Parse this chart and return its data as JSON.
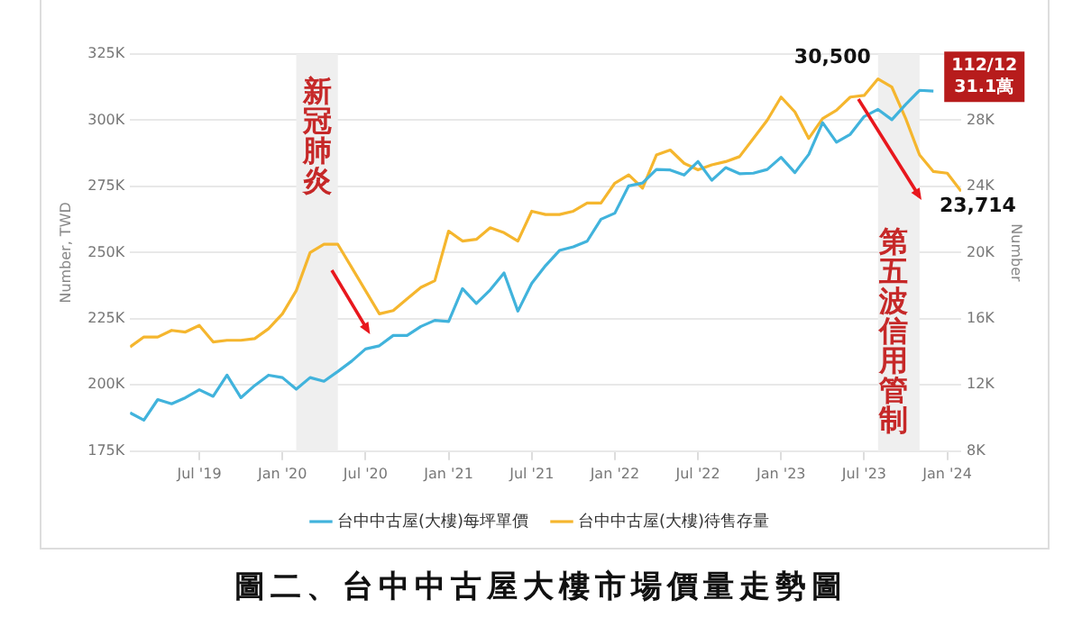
{
  "chart_data": {
    "type": "line",
    "title": "圖二、台中中古屋大樓市場價量走勢圖",
    "ylabel": "Number, TWD",
    "y2label": "Number",
    "x": [
      "2019-02",
      "2019-03",
      "2019-04",
      "2019-05",
      "2019-06",
      "2019-07",
      "2019-08",
      "2019-09",
      "2019-10",
      "2019-11",
      "2019-12",
      "2020-01",
      "2020-02",
      "2020-03",
      "2020-04",
      "2020-05",
      "2020-06",
      "2020-07",
      "2020-08",
      "2020-09",
      "2020-10",
      "2020-11",
      "2020-12",
      "2021-01",
      "2021-02",
      "2021-03",
      "2021-04",
      "2021-05",
      "2021-06",
      "2021-07",
      "2021-08",
      "2021-09",
      "2021-10",
      "2021-11",
      "2021-12",
      "2022-01",
      "2022-02",
      "2022-03",
      "2022-04",
      "2022-05",
      "2022-06",
      "2022-07",
      "2022-08",
      "2022-09",
      "2022-10",
      "2022-11",
      "2022-12",
      "2023-01",
      "2023-02",
      "2023-03",
      "2023-04",
      "2023-05",
      "2023-06",
      "2023-07",
      "2023-08",
      "2023-09",
      "2023-10",
      "2023-11",
      "2023-12",
      "2024-01",
      "2024-02"
    ],
    "series": [
      {
        "name": "台中中古屋(大樓)每坪單價",
        "color": "#41b3dc",
        "values": [
          189500,
          186700,
          194500,
          192900,
          195200,
          198200,
          195700,
          203700,
          195200,
          199800,
          203700,
          202800,
          198400,
          202800,
          201400,
          205100,
          209000,
          213600,
          214800,
          218700,
          218700,
          222100,
          224400,
          224000,
          236400,
          230800,
          235900,
          242300,
          227900,
          238400,
          245100,
          250800,
          252200,
          254300,
          262600,
          264900,
          275200,
          276300,
          281400,
          281200,
          279300,
          284400,
          277300,
          282100,
          279800,
          280000,
          281400,
          286000,
          280200,
          287100,
          299100,
          291700,
          294700,
          301400,
          304100,
          300200,
          306000,
          311300,
          311000,
          null,
          null
        ],
        "value_labels": [
          null,
          null,
          null,
          null,
          null,
          null,
          null,
          null,
          null,
          null,
          null,
          null,
          null,
          null,
          null,
          null,
          null,
          null,
          null,
          null,
          null,
          null,
          null,
          null,
          null,
          null,
          null,
          null,
          null,
          null,
          null,
          null,
          null,
          null,
          null,
          null,
          null,
          null,
          null,
          null,
          null,
          null,
          null,
          null,
          null,
          null,
          null,
          null,
          null,
          null,
          null,
          null,
          null,
          null,
          null,
          null,
          null,
          null,
          "112/12\n31.1萬",
          null,
          null
        ]
      },
      {
        "name": "台中中古屋(大樓)待售存量",
        "color": "#f5b62e",
        "axis": "y2",
        "values": [
          14300,
          14900,
          14900,
          15300,
          15200,
          15600,
          14600,
          14700,
          14700,
          14800,
          15400,
          16300,
          17700,
          20000,
          20500,
          20500,
          19100,
          17700,
          16300,
          16500,
          17200,
          17900,
          18300,
          21300,
          20700,
          20800,
          21500,
          21200,
          20700,
          22500,
          22300,
          22300,
          22500,
          23000,
          23000,
          24200,
          24700,
          23900,
          25900,
          26200,
          25400,
          25000,
          25300,
          25500,
          25800,
          26900,
          28000,
          29400,
          28500,
          26900,
          28100,
          28600,
          29400,
          29500,
          30500,
          30000,
          28100,
          25900,
          24900,
          24800,
          23714
        ],
        "value_labels": [
          null,
          null,
          null,
          null,
          null,
          null,
          null,
          null,
          null,
          null,
          null,
          null,
          null,
          null,
          null,
          null,
          null,
          null,
          null,
          null,
          null,
          null,
          null,
          null,
          null,
          null,
          null,
          null,
          null,
          null,
          null,
          null,
          null,
          null,
          null,
          null,
          null,
          null,
          null,
          null,
          null,
          null,
          null,
          null,
          null,
          null,
          null,
          null,
          null,
          null,
          null,
          null,
          null,
          null,
          "30,500",
          null,
          null,
          null,
          null,
          null,
          "23,714"
        ]
      }
    ],
    "xlim": [
      "2019-02",
      "2024-02"
    ],
    "xticks": [
      {
        "value": "2019-07",
        "label": "Jul '19"
      },
      {
        "value": "2020-01",
        "label": "Jan '20"
      },
      {
        "value": "2020-07",
        "label": "Jul '20"
      },
      {
        "value": "2021-01",
        "label": "Jan '21"
      },
      {
        "value": "2021-07",
        "label": "Jul '21"
      },
      {
        "value": "2022-01",
        "label": "Jan '22"
      },
      {
        "value": "2022-07",
        "label": "Jul '22"
      },
      {
        "value": "2023-01",
        "label": "Jan '23"
      },
      {
        "value": "2023-07",
        "label": "Jul '23"
      },
      {
        "value": "2024-01",
        "label": "Jan '24"
      }
    ],
    "ylim": [
      175000,
      325000
    ],
    "yticks": [
      {
        "value": 175000,
        "label": "175K"
      },
      {
        "value": 200000,
        "label": "200K"
      },
      {
        "value": 225000,
        "label": "225K"
      },
      {
        "value": 250000,
        "label": "250K"
      },
      {
        "value": 275000,
        "label": "275K"
      },
      {
        "value": 300000,
        "label": "300K"
      },
      {
        "value": 325000,
        "label": "325K"
      }
    ],
    "y2lim": [
      8000,
      32000
    ],
    "y2ticks": [
      {
        "value": 8000,
        "label": "8K"
      },
      {
        "value": 12000,
        "label": "12K"
      },
      {
        "value": 16000,
        "label": "16K"
      },
      {
        "value": 20000,
        "label": "20K"
      },
      {
        "value": 24000,
        "label": "24K"
      },
      {
        "value": 28000,
        "label": "28K"
      }
    ],
    "bands": [
      {
        "axis": "x",
        "from": "2020-02",
        "to": "2020-05",
        "label": "新冠肺炎",
        "color": "#efefef"
      },
      {
        "axis": "x",
        "from": "2023-08",
        "to": "2023-11",
        "label": "第五波信用管制",
        "color": "#efefef"
      }
    ],
    "grid": "y",
    "legend": "bottom"
  }
}
